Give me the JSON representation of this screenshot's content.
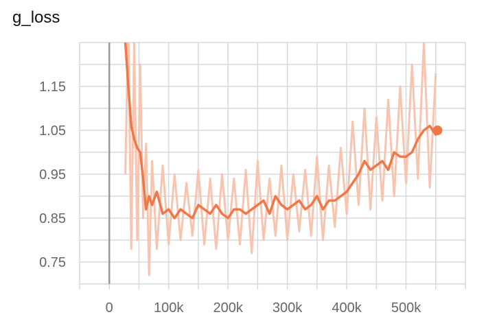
{
  "chart_data": {
    "type": "line",
    "title": "g_loss",
    "xlabel": "",
    "ylabel": "",
    "xlim": [
      -50000,
      600000
    ],
    "ylim": [
      0.7,
      1.25
    ],
    "x_ticks": [
      0,
      100000,
      200000,
      300000,
      400000,
      500000
    ],
    "x_tick_labels": [
      "0",
      "100k",
      "200k",
      "300k",
      "400k",
      "500k"
    ],
    "y_ticks": [
      0.75,
      0.85,
      0.95,
      1.05,
      1.15
    ],
    "y_tick_labels": [
      "0.75",
      "0.85",
      "0.95",
      "1.05",
      "1.15"
    ],
    "grid": true,
    "legend": "none",
    "colors": {
      "smoothed": "#f07848",
      "raw": "#f7c4b0",
      "zero_line": "#999999",
      "grid": "#d8d8d8"
    },
    "series": [
      {
        "role": "smoothed",
        "x": [
          27000,
          32000,
          37000,
          42000,
          47000,
          52000,
          57000,
          62000,
          67000,
          72000,
          80000,
          90000,
          100000,
          110000,
          120000,
          130000,
          140000,
          150000,
          160000,
          170000,
          180000,
          190000,
          200000,
          210000,
          220000,
          230000,
          240000,
          250000,
          260000,
          270000,
          280000,
          290000,
          300000,
          310000,
          320000,
          330000,
          340000,
          350000,
          360000,
          370000,
          380000,
          390000,
          400000,
          410000,
          420000,
          430000,
          440000,
          450000,
          460000,
          470000,
          480000,
          490000,
          500000,
          510000,
          520000,
          530000,
          540000,
          550000,
          553000
        ],
        "y": [
          1.25,
          1.15,
          1.06,
          1.03,
          1.01,
          1.0,
          0.94,
          0.87,
          0.9,
          0.88,
          0.91,
          0.86,
          0.87,
          0.85,
          0.87,
          0.86,
          0.85,
          0.88,
          0.87,
          0.86,
          0.88,
          0.86,
          0.85,
          0.87,
          0.87,
          0.86,
          0.87,
          0.88,
          0.89,
          0.86,
          0.9,
          0.88,
          0.87,
          0.88,
          0.89,
          0.87,
          0.88,
          0.9,
          0.87,
          0.89,
          0.89,
          0.9,
          0.91,
          0.93,
          0.95,
          0.98,
          0.96,
          0.97,
          0.98,
          0.96,
          1.0,
          0.99,
          0.99,
          1.0,
          1.03,
          1.05,
          1.06,
          1.04,
          1.05
        ]
      },
      {
        "role": "raw",
        "x": [
          27000,
          32000,
          37000,
          42000,
          47000,
          52000,
          57000,
          62000,
          67000,
          72000,
          80000,
          90000,
          100000,
          110000,
          120000,
          130000,
          140000,
          150000,
          160000,
          170000,
          180000,
          190000,
          200000,
          210000,
          220000,
          230000,
          240000,
          250000,
          260000,
          270000,
          280000,
          290000,
          300000,
          310000,
          320000,
          330000,
          340000,
          350000,
          360000,
          370000,
          380000,
          390000,
          400000,
          410000,
          420000,
          430000,
          440000,
          450000,
          460000,
          470000,
          480000,
          490000,
          500000,
          510000,
          520000,
          530000,
          540000,
          550000
        ],
        "y": [
          0.95,
          1.3,
          0.78,
          1.25,
          0.8,
          1.2,
          0.85,
          1.02,
          0.72,
          0.98,
          0.78,
          0.97,
          0.79,
          0.95,
          0.8,
          0.93,
          0.81,
          0.96,
          0.79,
          0.94,
          0.78,
          0.95,
          0.8,
          0.94,
          0.79,
          0.96,
          0.77,
          0.98,
          0.8,
          0.94,
          0.81,
          0.97,
          0.8,
          0.95,
          0.82,
          0.96,
          0.81,
          0.99,
          0.8,
          0.97,
          0.83,
          1.01,
          0.86,
          1.07,
          0.88,
          1.1,
          0.87,
          1.08,
          0.89,
          1.12,
          0.9,
          1.15,
          0.93,
          1.2,
          0.94,
          1.25,
          0.92,
          1.18
        ]
      }
    ]
  }
}
